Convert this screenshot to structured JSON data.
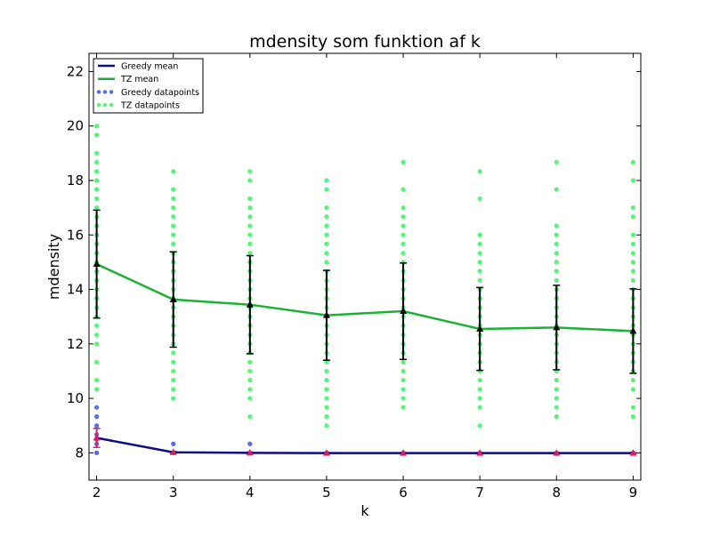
{
  "chart_data": {
    "type": "line",
    "title": "mdensity som funktion af k",
    "xlabel": "k",
    "ylabel": "mdensity",
    "xlim": [
      1.9,
      9.1
    ],
    "ylim": [
      7,
      22.667
    ],
    "xticks": [
      2,
      3,
      4,
      5,
      6,
      7,
      8,
      9
    ],
    "yticks": [
      8,
      10,
      12,
      14,
      16,
      18,
      20,
      22
    ],
    "legend_position": "top-left",
    "grid": false,
    "colors": {
      "greedy_line": "#0b0b8c",
      "tz_line": "#1ab232",
      "greedy_points": "#5a6af0",
      "tz_points": "#55f57a",
      "errorbar": "#000000",
      "greedy_marker": "#d42060",
      "tz_marker": "#000000"
    },
    "legend": [
      {
        "label": "Greedy mean",
        "kind": "line",
        "color": "#0b0b8c"
      },
      {
        "label": "TZ mean",
        "kind": "line",
        "color": "#1ab232"
      },
      {
        "label": "Greedy datapoints",
        "kind": "points",
        "color": "#5a6af0"
      },
      {
        "label": "TZ datapoints",
        "kind": "points",
        "color": "#55f57a"
      }
    ],
    "series": [
      {
        "name": "Greedy mean",
        "x": [
          2,
          3,
          4,
          5,
          6,
          7,
          8,
          9
        ],
        "y": [
          8.55,
          8.02,
          8.0,
          7.99,
          7.99,
          7.99,
          7.99,
          7.99
        ],
        "yerr": [
          0.35,
          0.03,
          0.03,
          0.02,
          0.02,
          0.02,
          0.02,
          0.02
        ]
      },
      {
        "name": "TZ mean",
        "x": [
          2,
          3,
          4,
          5,
          6,
          7,
          8,
          9
        ],
        "y": [
          14.93,
          13.63,
          13.44,
          13.05,
          13.2,
          12.55,
          12.6,
          12.47
        ],
        "yerr": [
          1.98,
          1.75,
          1.8,
          1.65,
          1.77,
          1.52,
          1.55,
          1.55
        ]
      },
      {
        "name": "Greedy datapoints",
        "points": [
          [
            2,
            9.67
          ],
          [
            2,
            9.33
          ],
          [
            2,
            9.0
          ],
          [
            2,
            8.67
          ],
          [
            2,
            8.5
          ],
          [
            2,
            8.33
          ],
          [
            2,
            8.0
          ],
          [
            3,
            8.33
          ],
          [
            3,
            8.0
          ],
          [
            4,
            8.33
          ],
          [
            4,
            8.0
          ],
          [
            5,
            8.0
          ],
          [
            6,
            8.0
          ],
          [
            7,
            8.0
          ],
          [
            8,
            8.0
          ],
          [
            9,
            8.0
          ]
        ]
      },
      {
        "name": "TZ datapoints",
        "points": [
          [
            2,
            20.0
          ],
          [
            2,
            19.67
          ],
          [
            2,
            19.0
          ],
          [
            2,
            18.67
          ],
          [
            2,
            18.33
          ],
          [
            2,
            18.0
          ],
          [
            2,
            17.67
          ],
          [
            2,
            17.33
          ],
          [
            2,
            17.0
          ],
          [
            2,
            16.67
          ],
          [
            2,
            16.33
          ],
          [
            2,
            16.0
          ],
          [
            2,
            15.67
          ],
          [
            2,
            15.33
          ],
          [
            2,
            15.0
          ],
          [
            2,
            14.67
          ],
          [
            2,
            14.33
          ],
          [
            2,
            14.0
          ],
          [
            2,
            13.67
          ],
          [
            2,
            13.33
          ],
          [
            2,
            13.0
          ],
          [
            2,
            12.67
          ],
          [
            2,
            12.33
          ],
          [
            2,
            12.0
          ],
          [
            2,
            11.33
          ],
          [
            2,
            10.67
          ],
          [
            2,
            10.33
          ],
          [
            3,
            18.33
          ],
          [
            3,
            17.67
          ],
          [
            3,
            17.33
          ],
          [
            3,
            17.0
          ],
          [
            3,
            16.67
          ],
          [
            3,
            16.33
          ],
          [
            3,
            16.0
          ],
          [
            3,
            15.67
          ],
          [
            3,
            15.33
          ],
          [
            3,
            15.0
          ],
          [
            3,
            14.67
          ],
          [
            3,
            14.33
          ],
          [
            3,
            14.0
          ],
          [
            3,
            13.67
          ],
          [
            3,
            13.33
          ],
          [
            3,
            13.0
          ],
          [
            3,
            12.67
          ],
          [
            3,
            12.33
          ],
          [
            3,
            12.0
          ],
          [
            3,
            11.67
          ],
          [
            3,
            11.33
          ],
          [
            3,
            11.0
          ],
          [
            3,
            10.67
          ],
          [
            3,
            10.33
          ],
          [
            3,
            10.0
          ],
          [
            4,
            18.33
          ],
          [
            4,
            18.0
          ],
          [
            4,
            17.33
          ],
          [
            4,
            17.0
          ],
          [
            4,
            16.67
          ],
          [
            4,
            16.33
          ],
          [
            4,
            16.0
          ],
          [
            4,
            15.67
          ],
          [
            4,
            15.33
          ],
          [
            4,
            15.0
          ],
          [
            4,
            14.67
          ],
          [
            4,
            14.33
          ],
          [
            4,
            14.0
          ],
          [
            4,
            13.67
          ],
          [
            4,
            13.33
          ],
          [
            4,
            13.0
          ],
          [
            4,
            12.67
          ],
          [
            4,
            12.33
          ],
          [
            4,
            12.0
          ],
          [
            4,
            11.67
          ],
          [
            4,
            11.33
          ],
          [
            4,
            11.0
          ],
          [
            4,
            10.67
          ],
          [
            4,
            10.33
          ],
          [
            4,
            10.0
          ],
          [
            4,
            9.33
          ],
          [
            5,
            18.0
          ],
          [
            5,
            17.67
          ],
          [
            5,
            17.0
          ],
          [
            5,
            16.67
          ],
          [
            5,
            16.33
          ],
          [
            5,
            16.0
          ],
          [
            5,
            15.67
          ],
          [
            5,
            15.33
          ],
          [
            5,
            15.0
          ],
          [
            5,
            14.67
          ],
          [
            5,
            14.33
          ],
          [
            5,
            14.0
          ],
          [
            5,
            13.67
          ],
          [
            5,
            13.33
          ],
          [
            5,
            13.0
          ],
          [
            5,
            12.67
          ],
          [
            5,
            12.33
          ],
          [
            5,
            12.0
          ],
          [
            5,
            11.67
          ],
          [
            5,
            11.33
          ],
          [
            5,
            11.0
          ],
          [
            5,
            10.67
          ],
          [
            5,
            10.33
          ],
          [
            5,
            10.0
          ],
          [
            5,
            9.67
          ],
          [
            5,
            9.33
          ],
          [
            5,
            9.0
          ],
          [
            6,
            18.67
          ],
          [
            6,
            17.67
          ],
          [
            6,
            17.0
          ],
          [
            6,
            16.67
          ],
          [
            6,
            16.33
          ],
          [
            6,
            16.0
          ],
          [
            6,
            15.67
          ],
          [
            6,
            15.33
          ],
          [
            6,
            15.0
          ],
          [
            6,
            14.67
          ],
          [
            6,
            14.33
          ],
          [
            6,
            14.0
          ],
          [
            6,
            13.67
          ],
          [
            6,
            13.33
          ],
          [
            6,
            13.0
          ],
          [
            6,
            12.67
          ],
          [
            6,
            12.33
          ],
          [
            6,
            12.0
          ],
          [
            6,
            11.67
          ],
          [
            6,
            11.33
          ],
          [
            6,
            11.0
          ],
          [
            6,
            10.67
          ],
          [
            6,
            10.33
          ],
          [
            6,
            10.0
          ],
          [
            6,
            9.67
          ],
          [
            7,
            18.33
          ],
          [
            7,
            17.33
          ],
          [
            7,
            16.0
          ],
          [
            7,
            15.67
          ],
          [
            7,
            15.33
          ],
          [
            7,
            15.0
          ],
          [
            7,
            14.67
          ],
          [
            7,
            14.33
          ],
          [
            7,
            14.0
          ],
          [
            7,
            13.67
          ],
          [
            7,
            13.33
          ],
          [
            7,
            13.0
          ],
          [
            7,
            12.67
          ],
          [
            7,
            12.33
          ],
          [
            7,
            12.0
          ],
          [
            7,
            11.67
          ],
          [
            7,
            11.33
          ],
          [
            7,
            11.0
          ],
          [
            7,
            10.67
          ],
          [
            7,
            10.33
          ],
          [
            7,
            10.0
          ],
          [
            7,
            9.67
          ],
          [
            7,
            9.0
          ],
          [
            8,
            18.67
          ],
          [
            8,
            17.67
          ],
          [
            8,
            16.33
          ],
          [
            8,
            16.0
          ],
          [
            8,
            15.67
          ],
          [
            8,
            15.33
          ],
          [
            8,
            15.0
          ],
          [
            8,
            14.67
          ],
          [
            8,
            14.33
          ],
          [
            8,
            14.0
          ],
          [
            8,
            13.67
          ],
          [
            8,
            13.33
          ],
          [
            8,
            13.0
          ],
          [
            8,
            12.67
          ],
          [
            8,
            12.33
          ],
          [
            8,
            12.0
          ],
          [
            8,
            11.67
          ],
          [
            8,
            11.33
          ],
          [
            8,
            11.0
          ],
          [
            8,
            10.67
          ],
          [
            8,
            10.33
          ],
          [
            8,
            10.0
          ],
          [
            8,
            9.67
          ],
          [
            8,
            9.33
          ],
          [
            9,
            18.67
          ],
          [
            9,
            18.0
          ],
          [
            9,
            17.0
          ],
          [
            9,
            16.67
          ],
          [
            9,
            16.0
          ],
          [
            9,
            15.67
          ],
          [
            9,
            15.33
          ],
          [
            9,
            15.0
          ],
          [
            9,
            14.67
          ],
          [
            9,
            14.33
          ],
          [
            9,
            14.0
          ],
          [
            9,
            13.67
          ],
          [
            9,
            13.33
          ],
          [
            9,
            13.0
          ],
          [
            9,
            12.67
          ],
          [
            9,
            12.33
          ],
          [
            9,
            12.0
          ],
          [
            9,
            11.67
          ],
          [
            9,
            11.33
          ],
          [
            9,
            11.0
          ],
          [
            9,
            10.67
          ],
          [
            9,
            10.33
          ],
          [
            9,
            9.67
          ],
          [
            9,
            9.33
          ]
        ]
      }
    ]
  }
}
